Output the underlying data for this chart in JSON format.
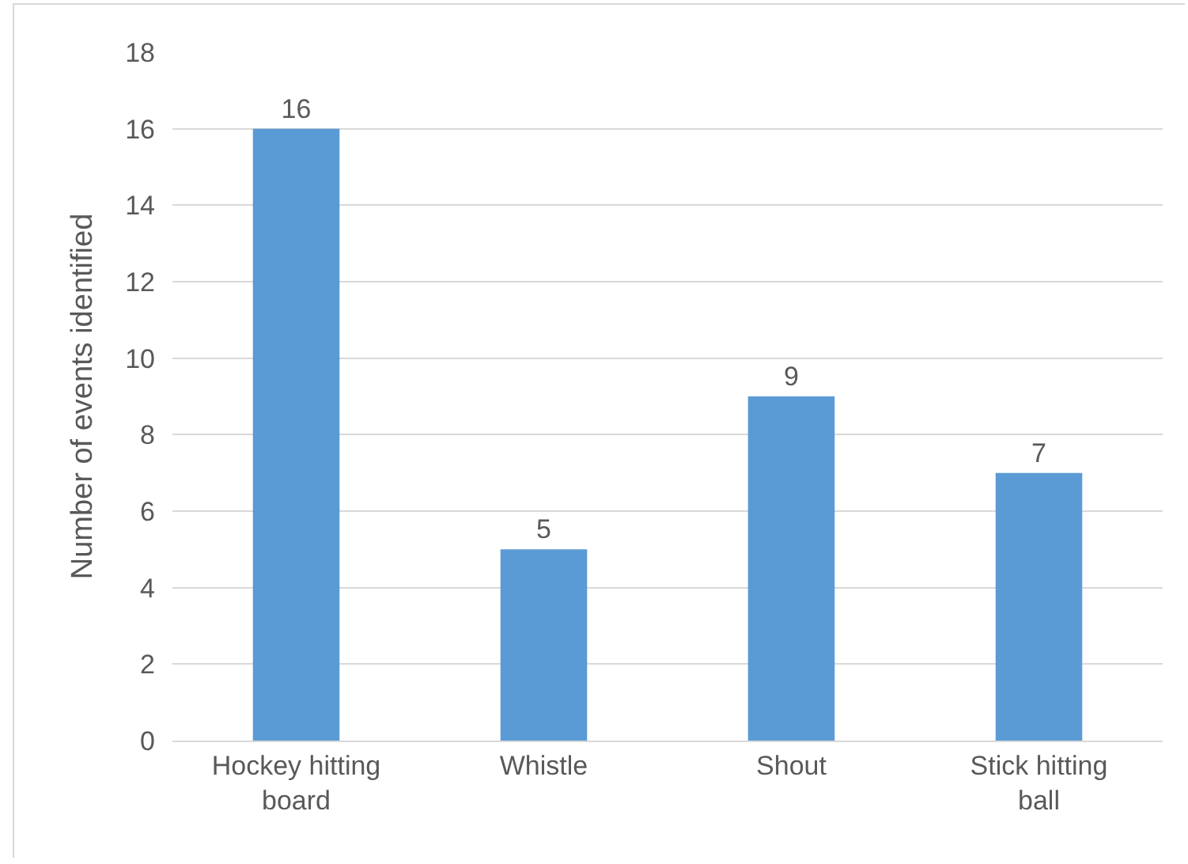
{
  "chart_data": {
    "type": "bar",
    "ylabel": "Number of events identified",
    "categories": [
      "Hockey hitting board",
      "Whistle",
      "Shout",
      "Stick hitting ball"
    ],
    "values": [
      16,
      5,
      9,
      7
    ],
    "color": "#5b9bd5",
    "ylim": [
      0,
      18
    ],
    "yticks": [
      0,
      2,
      4,
      6,
      8,
      10,
      12,
      14,
      16,
      18
    ],
    "grid": "y",
    "data_labels": true
  }
}
